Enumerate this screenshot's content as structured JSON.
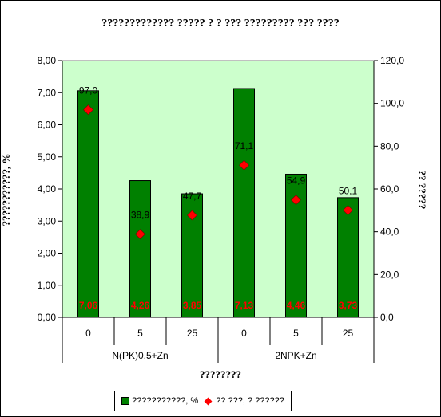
{
  "chart_data": {
    "type": "bar",
    "title": "????????????? ????? ? ? ??? ????????? ??? ????",
    "ylabel": "???????????, %",
    "y2label": "?? ?????",
    "xlabel": "????????",
    "groups": [
      "N(PK)0,5+Zn",
      "2NPK+Zn"
    ],
    "categories": [
      "0",
      "5",
      "25",
      "0",
      "5",
      "25"
    ],
    "ylim": [
      0,
      8
    ],
    "y2lim": [
      0,
      120
    ],
    "yticks": [
      "0,00",
      "1,00",
      "2,00",
      "3,00",
      "4,00",
      "5,00",
      "6,00",
      "7,00",
      "8,00"
    ],
    "y2ticks": [
      "0,0",
      "20,0",
      "40,0",
      "60,0",
      "80,0",
      "100,0",
      "120,0"
    ],
    "series": [
      {
        "name": "???????????, %",
        "kind": "bar",
        "axis": "left",
        "values": [
          7.06,
          4.26,
          3.85,
          7.13,
          4.46,
          3.73
        ],
        "labels": [
          "7,06",
          "4,26",
          "3,85",
          "7,13",
          "4,46",
          "3,73"
        ],
        "color": "#008000",
        "label_color": "#ff0000"
      },
      {
        "name": "?? ???, ? ??????",
        "kind": "marker",
        "axis": "right",
        "values": [
          97.0,
          38.9,
          47.7,
          71.1,
          54.9,
          50.1
        ],
        "labels": [
          "97,0",
          "38,9",
          "47,7",
          "71,1",
          "54,9",
          "50,1"
        ],
        "color": "#ff0000"
      }
    ],
    "plot_background": "#ccffcc",
    "legend_position": "bottom"
  }
}
